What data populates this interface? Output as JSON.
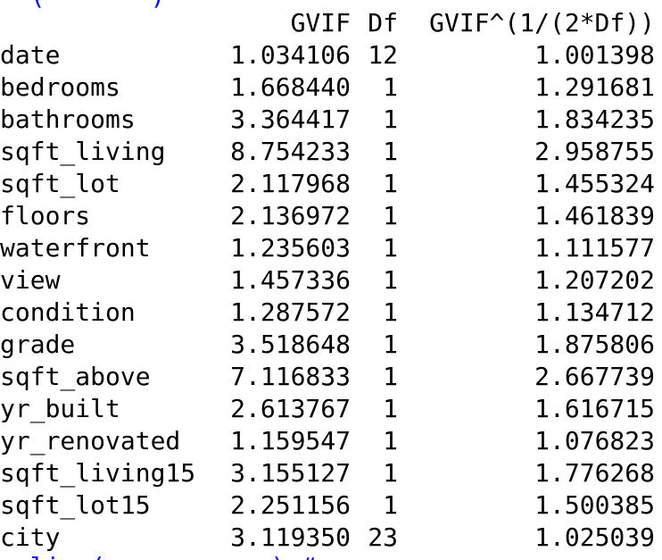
{
  "console": {
    "clipped_top_text": "  (       )",
    "clipped_bottom_text": "  lin ( ~ . ,     ) # ..."
  },
  "table": {
    "headers": {
      "gvif": "GVIF",
      "df": "Df",
      "adj": "GVIF^(1/(2*Df))"
    },
    "rows": [
      {
        "name": "date",
        "gvif": "1.034106",
        "df": "12",
        "adj": "1.001398"
      },
      {
        "name": "bedrooms",
        "gvif": "1.668440",
        "df": "1",
        "adj": "1.291681"
      },
      {
        "name": "bathrooms",
        "gvif": "3.364417",
        "df": "1",
        "adj": "1.834235"
      },
      {
        "name": "sqft_living",
        "gvif": "8.754233",
        "df": "1",
        "adj": "2.958755"
      },
      {
        "name": "sqft_lot",
        "gvif": "2.117968",
        "df": "1",
        "adj": "1.455324"
      },
      {
        "name": "floors",
        "gvif": "2.136972",
        "df": "1",
        "adj": "1.461839"
      },
      {
        "name": "waterfront",
        "gvif": "1.235603",
        "df": "1",
        "adj": "1.111577"
      },
      {
        "name": "view",
        "gvif": "1.457336",
        "df": "1",
        "adj": "1.207202"
      },
      {
        "name": "condition",
        "gvif": "1.287572",
        "df": "1",
        "adj": "1.134712"
      },
      {
        "name": "grade",
        "gvif": "3.518648",
        "df": "1",
        "adj": "1.875806"
      },
      {
        "name": "sqft_above",
        "gvif": "7.116833",
        "df": "1",
        "adj": "2.667739"
      },
      {
        "name": "yr_built",
        "gvif": "2.613767",
        "df": "1",
        "adj": "1.616715"
      },
      {
        "name": "yr_renovated",
        "gvif": "1.159547",
        "df": "1",
        "adj": "1.076823"
      },
      {
        "name": "sqft_living15",
        "gvif": "3.155127",
        "df": "1",
        "adj": "1.776268"
      },
      {
        "name": "sqft_lot15",
        "gvif": "2.251156",
        "df": "1",
        "adj": "1.500385"
      },
      {
        "name": "city",
        "gvif": "3.119350",
        "df": "23",
        "adj": "1.025039"
      }
    ]
  },
  "colors": {
    "text": "#000000",
    "command": "#0000ff",
    "background": "#ffffff"
  }
}
